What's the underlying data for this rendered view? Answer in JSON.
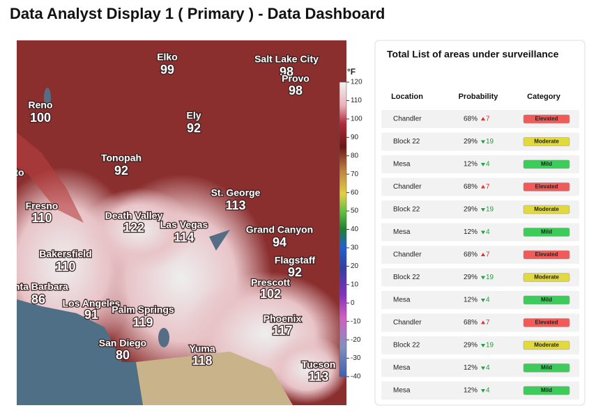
{
  "header": {
    "title": "Data Analyst Display 1 ( Primary ) - Data Dashboard"
  },
  "map": {
    "legend": {
      "unit": "°F",
      "ticks": [
        120,
        110,
        100,
        90,
        80,
        70,
        60,
        50,
        40,
        30,
        20,
        10,
        0,
        -10,
        -20,
        -30,
        -40
      ]
    },
    "cities": [
      {
        "name": "Elko",
        "temp": "99"
      },
      {
        "name": "Salt Lake City",
        "temp": "98"
      },
      {
        "name": "Provo",
        "temp": "98"
      },
      {
        "name": "Reno",
        "temp": "100"
      },
      {
        "name": "Ely",
        "temp": "92"
      },
      {
        "name": "Tonopah",
        "temp": "92"
      },
      {
        "name": "St. George",
        "temp": "113"
      },
      {
        "name": "Fresno",
        "temp": "110"
      },
      {
        "name": "Death Valley",
        "temp": "122"
      },
      {
        "name": "Las Vegas",
        "temp": "114"
      },
      {
        "name": "Grand Canyon",
        "temp": "94"
      },
      {
        "name": "Bakersfield",
        "temp": "110"
      },
      {
        "name": "Flagstaff",
        "temp": "92"
      },
      {
        "name": "Prescott",
        "temp": "102"
      },
      {
        "name": "anta Barbara",
        "temp": "86"
      },
      {
        "name": "Los Angeles",
        "temp": "91"
      },
      {
        "name": "Palm Springs",
        "temp": "119"
      },
      {
        "name": "Phoenix",
        "temp": "117"
      },
      {
        "name": "San Diego",
        "temp": "80"
      },
      {
        "name": "Yuma",
        "temp": "118"
      },
      {
        "name": "Tucson",
        "temp": "113"
      },
      {
        "name": "to"
      }
    ]
  },
  "panel": {
    "title": "Total List of areas under surveillance",
    "columns": [
      "Location",
      "Probability",
      "Category"
    ],
    "rows": [
      {
        "location": "Chandler",
        "probability": "68%",
        "change": "7",
        "trend": "up",
        "category": "Elevated"
      },
      {
        "location": "Block 22",
        "probability": "29%",
        "change": "19",
        "trend": "down",
        "category": "Moderate"
      },
      {
        "location": "Mesa",
        "probability": "12%",
        "change": "4",
        "trend": "down",
        "category": "Mild"
      },
      {
        "location": "Chandler",
        "probability": "68%",
        "change": "7",
        "trend": "up",
        "category": "Elevated"
      },
      {
        "location": "Block 22",
        "probability": "29%",
        "change": "19",
        "trend": "down",
        "category": "Moderate"
      },
      {
        "location": "Mesa",
        "probability": "12%",
        "change": "4",
        "trend": "down",
        "category": "Mild"
      },
      {
        "location": "Chandler",
        "probability": "68%",
        "change": "7",
        "trend": "up",
        "category": "Elevated"
      },
      {
        "location": "Block 22",
        "probability": "29%",
        "change": "19",
        "trend": "down",
        "category": "Moderate"
      },
      {
        "location": "Mesa",
        "probability": "12%",
        "change": "4",
        "trend": "down",
        "category": "Mild"
      },
      {
        "location": "Chandler",
        "probability": "68%",
        "change": "7",
        "trend": "up",
        "category": "Elevated"
      },
      {
        "location": "Block 22",
        "probability": "29%",
        "change": "19",
        "trend": "down",
        "category": "Moderate"
      },
      {
        "location": "Mesa",
        "probability": "12%",
        "change": "4",
        "trend": "down",
        "category": "Mild"
      },
      {
        "location": "Mesa",
        "probability": "12%",
        "change": "4",
        "trend": "down",
        "category": "Mild"
      }
    ]
  }
}
